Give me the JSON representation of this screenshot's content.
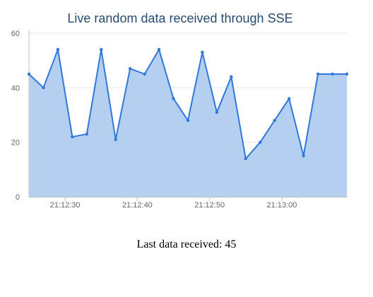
{
  "chart_data": {
    "type": "area",
    "title": "Live random data received through SSE",
    "xlabel": "",
    "ylabel": "",
    "ylim": [
      0,
      60
    ],
    "xlim": [
      "21:12:25",
      "21:13:09"
    ],
    "grid": true,
    "legend": "none",
    "y_ticks": [
      0,
      20,
      40,
      60
    ],
    "x_ticks": [
      "21:12:30",
      "21:12:40",
      "21:12:50",
      "21:13:00"
    ],
    "series": [
      {
        "x": [
          "21:12:25",
          "21:12:27",
          "21:12:29",
          "21:12:31",
          "21:12:33",
          "21:12:35",
          "21:12:37",
          "21:12:39",
          "21:12:41",
          "21:12:43",
          "21:12:45",
          "21:12:47",
          "21:12:49",
          "21:12:51",
          "21:12:53",
          "21:12:55",
          "21:12:57",
          "21:12:59",
          "21:13:01",
          "21:13:03",
          "21:13:05",
          "21:13:07",
          "21:13:09"
        ],
        "values": [
          45,
          40,
          54,
          22,
          23,
          54,
          21,
          47,
          45,
          54,
          36,
          28,
          53,
          31,
          44,
          14,
          20,
          28,
          36,
          15,
          45,
          45,
          45
        ]
      }
    ],
    "colors": {
      "line": "#3178d8",
      "fill": "#b5cff0",
      "grid": "#e6e6e6",
      "axis": "#c0c0c0"
    }
  },
  "status": {
    "text": "Last data received: 45"
  }
}
